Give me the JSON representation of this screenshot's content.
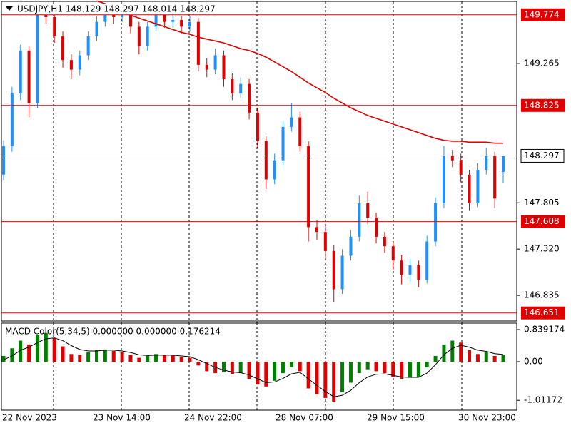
{
  "chart_data": {
    "type": "candlestick",
    "title": "USDJPY,H1  148.129 148.297 148.014 148.297",
    "open": [
      148.1,
      148.4,
      148.95,
      149.4,
      148.85,
      149.8,
      149.75,
      149.55,
      149.3,
      149.2,
      149.35,
      149.55,
      149.7,
      149.8,
      149.75,
      149.8,
      149.65,
      149.45,
      149.65,
      149.8,
      149.7,
      149.72,
      149.65,
      149.7,
      149.25,
      149.2,
      149.35,
      149.1,
      148.95,
      149.05,
      148.75,
      148.45,
      148.05,
      148.25,
      148.6,
      148.7,
      148.4,
      147.55,
      147.5,
      147.3,
      146.9,
      147.25,
      147.45,
      147.8,
      147.65,
      147.45,
      147.35,
      147.2,
      147.05,
      147.15,
      147.0,
      147.4,
      147.8,
      148.3,
      148.25,
      148.1,
      147.8,
      148.15,
      148.3,
      148.129
    ],
    "high": [
      148.46,
      149.02,
      149.46,
      149.45,
      149.88,
      149.86,
      149.8,
      149.6,
      149.36,
      149.4,
      149.6,
      149.76,
      149.86,
      149.85,
      149.88,
      149.84,
      149.7,
      149.7,
      149.86,
      149.84,
      149.78,
      149.76,
      149.76,
      149.74,
      149.32,
      149.42,
      149.4,
      149.16,
      149.12,
      149.1,
      148.8,
      148.5,
      148.32,
      148.66,
      148.85,
      148.76,
      148.45,
      147.62,
      147.56,
      147.36,
      147.32,
      147.52,
      147.88,
      147.92,
      147.7,
      147.5,
      147.4,
      147.26,
      147.22,
      147.2,
      147.46,
      147.86,
      148.4,
      148.36,
      148.32,
      148.15,
      148.22,
      148.38,
      148.34,
      148.297
    ],
    "low": [
      148.04,
      148.34,
      148.88,
      148.7,
      148.8,
      149.68,
      149.48,
      149.22,
      149.1,
      149.14,
      149.3,
      149.5,
      149.65,
      149.68,
      149.7,
      149.58,
      149.36,
      149.4,
      149.6,
      149.64,
      149.64,
      149.58,
      149.6,
      149.18,
      149.12,
      149.15,
      149.02,
      148.88,
      148.9,
      148.68,
      148.38,
      147.95,
      148.0,
      148.2,
      148.55,
      148.34,
      147.4,
      147.42,
      147.22,
      146.76,
      146.85,
      147.2,
      147.4,
      147.58,
      147.38,
      147.28,
      147.1,
      146.95,
      146.98,
      146.92,
      146.96,
      147.35,
      147.75,
      148.18,
      148.02,
      147.72,
      147.76,
      148.1,
      147.75,
      148.014
    ],
    "close": [
      148.4,
      148.95,
      149.4,
      148.85,
      149.8,
      149.75,
      149.55,
      149.3,
      149.2,
      149.35,
      149.55,
      149.7,
      149.8,
      149.75,
      149.8,
      149.65,
      149.45,
      149.65,
      149.8,
      149.7,
      149.72,
      149.65,
      149.7,
      149.25,
      149.2,
      149.35,
      149.1,
      148.95,
      149.05,
      148.75,
      148.45,
      148.05,
      148.25,
      148.6,
      148.7,
      148.4,
      147.55,
      147.5,
      147.3,
      146.9,
      147.25,
      147.45,
      147.8,
      147.65,
      147.45,
      147.35,
      147.2,
      147.05,
      147.15,
      147.0,
      147.4,
      147.8,
      148.3,
      148.25,
      148.1,
      147.8,
      148.15,
      148.3,
      147.85,
      148.297
    ],
    "up_color": "#1e90ff",
    "down_color": "#e00000",
    "moving_average": {
      "color": "#e00000",
      "values": [
        null,
        null,
        null,
        null,
        null,
        null,
        null,
        null,
        null,
        null,
        null,
        149.92,
        149.89,
        149.85,
        149.81,
        149.77,
        149.74,
        149.71,
        149.68,
        149.65,
        149.62,
        149.59,
        149.57,
        149.54,
        149.52,
        149.5,
        149.48,
        149.45,
        149.42,
        149.4,
        149.37,
        149.33,
        149.28,
        149.23,
        149.18,
        149.12,
        149.06,
        149.01,
        148.96,
        148.9,
        148.85,
        148.8,
        148.76,
        148.72,
        148.69,
        148.66,
        148.63,
        148.6,
        148.57,
        148.54,
        148.51,
        148.48,
        148.46,
        148.45,
        148.45,
        148.44,
        148.44,
        148.44,
        148.43,
        148.43
      ]
    },
    "levels": [
      149.774,
      148.825,
      147.608,
      146.651
    ],
    "level_color": "#e00000",
    "current_price": 148.297,
    "ylim": [
      146.574,
      149.907
    ],
    "yticks": [
      149.265,
      147.805,
      {
        "value": 147.32,
        "label": "147.320"
      },
      146.835
    ],
    "x_labels": [
      "22 Nov 2023",
      "23 Nov 14:00",
      "24 Nov 22:00",
      "28 Nov 07:00",
      "29 Nov 15:00",
      "30 Nov 23:00"
    ],
    "macd": {
      "title": "MACD Color(5,34,5) 0.000000 0.000000 0.176214",
      "up_color": "#008000",
      "down_color": "#e00000",
      "histogram": [
        0.15,
        0.35,
        0.55,
        0.45,
        0.7,
        0.75,
        0.62,
        0.4,
        0.2,
        0.18,
        0.25,
        0.3,
        0.32,
        0.28,
        0.25,
        0.18,
        0.1,
        0.15,
        0.2,
        0.18,
        0.16,
        0.12,
        0.1,
        -0.1,
        -0.25,
        -0.3,
        -0.28,
        -0.32,
        -0.3,
        -0.45,
        -0.6,
        -0.65,
        -0.5,
        -0.3,
        -0.15,
        -0.25,
        -0.7,
        -0.85,
        -0.95,
        -1.05,
        -0.8,
        -0.55,
        -0.3,
        -0.2,
        -0.25,
        -0.3,
        -0.4,
        -0.45,
        -0.42,
        -0.4,
        -0.15,
        0.15,
        0.45,
        0.55,
        0.5,
        0.3,
        0.2,
        0.25,
        0.15,
        0.176
      ],
      "signal": [
        0.05,
        0.15,
        0.3,
        0.38,
        0.5,
        0.6,
        0.62,
        0.55,
        0.42,
        0.32,
        0.28,
        0.28,
        0.3,
        0.3,
        0.28,
        0.24,
        0.18,
        0.16,
        0.17,
        0.17,
        0.17,
        0.15,
        0.13,
        0.05,
        -0.05,
        -0.15,
        -0.22,
        -0.27,
        -0.29,
        -0.35,
        -0.45,
        -0.55,
        -0.53,
        -0.44,
        -0.32,
        -0.28,
        -0.45,
        -0.62,
        -0.78,
        -0.92,
        -0.88,
        -0.75,
        -0.55,
        -0.4,
        -0.33,
        -0.32,
        -0.36,
        -0.4,
        -0.41,
        -0.41,
        -0.3,
        -0.08,
        0.18,
        0.35,
        0.43,
        0.38,
        0.3,
        0.27,
        0.21,
        0.19
      ],
      "ylim": [
        -1.25,
        0.989
      ],
      "yticks": [
        0.839174,
        {
          "value": 0,
          "label": "0.00"
        },
        -1.01172
      ]
    }
  }
}
